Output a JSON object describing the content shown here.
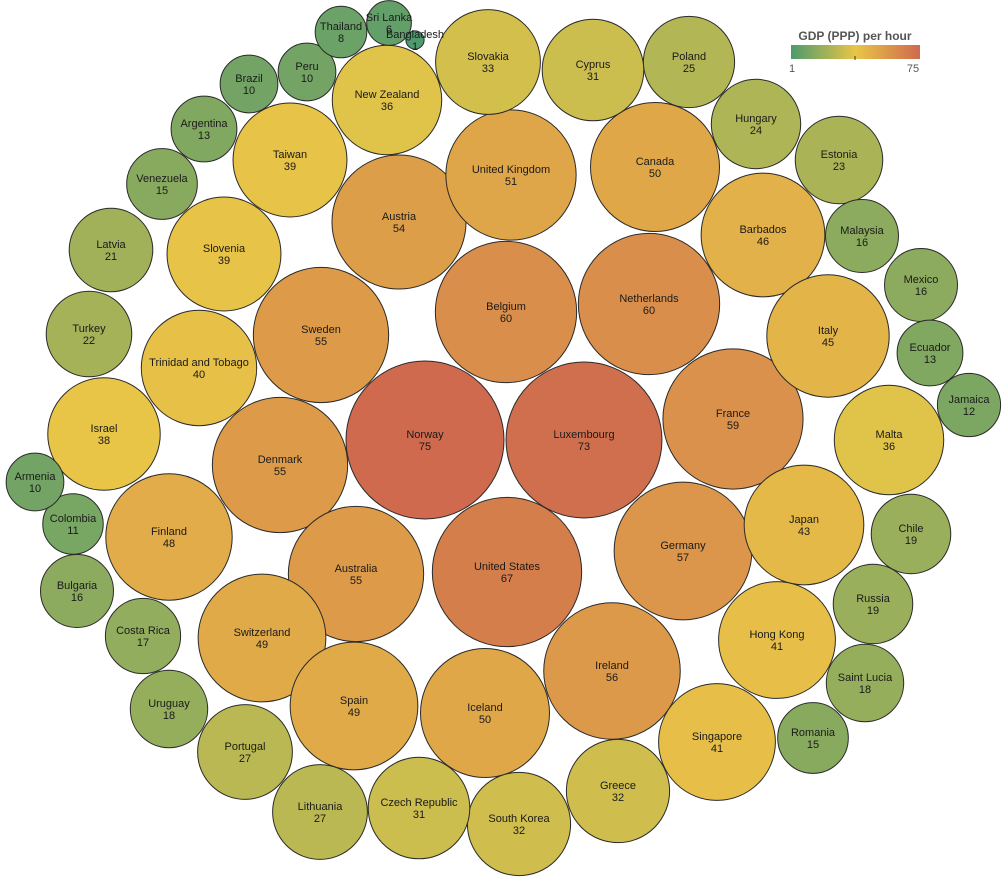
{
  "chart_data": {
    "type": "bubble",
    "title": "",
    "legend": {
      "title": "GDP (PPP) per hour",
      "min": 1,
      "max": 75,
      "placement": "top-right"
    },
    "color_scale": [
      "#4e9a6e",
      "#e8c547",
      "#cf6a4e"
    ],
    "series": [
      {
        "name": "Norway",
        "value": 75
      },
      {
        "name": "Luxembourg",
        "value": 73
      },
      {
        "name": "United States",
        "value": 67
      },
      {
        "name": "Belgium",
        "value": 60
      },
      {
        "name": "Netherlands",
        "value": 60
      },
      {
        "name": "France",
        "value": 59
      },
      {
        "name": "Germany",
        "value": 57
      },
      {
        "name": "Ireland",
        "value": 56
      },
      {
        "name": "Sweden",
        "value": 55
      },
      {
        "name": "Denmark",
        "value": 55
      },
      {
        "name": "Australia",
        "value": 55
      },
      {
        "name": "Austria",
        "value": 54
      },
      {
        "name": "United Kingdom",
        "value": 51
      },
      {
        "name": "Canada",
        "value": 50
      },
      {
        "name": "Iceland",
        "value": 50
      },
      {
        "name": "Switzerland",
        "value": 49
      },
      {
        "name": "Spain",
        "value": 49
      },
      {
        "name": "Finland",
        "value": 48
      },
      {
        "name": "Barbados",
        "value": 46
      },
      {
        "name": "Italy",
        "value": 45
      },
      {
        "name": "Japan",
        "value": 43
      },
      {
        "name": "Hong Kong",
        "value": 41
      },
      {
        "name": "Singapore",
        "value": 41
      },
      {
        "name": "Trinidad and Tobago",
        "value": 40
      },
      {
        "name": "Taiwan",
        "value": 39
      },
      {
        "name": "Slovenia",
        "value": 39
      },
      {
        "name": "Israel",
        "value": 38
      },
      {
        "name": "New Zealand",
        "value": 36
      },
      {
        "name": "Malta",
        "value": 36
      },
      {
        "name": "Slovakia",
        "value": 33
      },
      {
        "name": "South Korea",
        "value": 32
      },
      {
        "name": "Greece",
        "value": 32
      },
      {
        "name": "Cyprus",
        "value": 31
      },
      {
        "name": "Czech Republic",
        "value": 31
      },
      {
        "name": "Portugal",
        "value": 27
      },
      {
        "name": "Lithuania",
        "value": 27
      },
      {
        "name": "Poland",
        "value": 25
      },
      {
        "name": "Hungary",
        "value": 24
      },
      {
        "name": "Estonia",
        "value": 23
      },
      {
        "name": "Turkey",
        "value": 22
      },
      {
        "name": "Latvia",
        "value": 21
      },
      {
        "name": "Chile",
        "value": 19
      },
      {
        "name": "Russia",
        "value": 19
      },
      {
        "name": "Uruguay",
        "value": 18
      },
      {
        "name": "Saint Lucia",
        "value": 18
      },
      {
        "name": "Costa Rica",
        "value": 17
      },
      {
        "name": "Malaysia",
        "value": 16
      },
      {
        "name": "Mexico",
        "value": 16
      },
      {
        "name": "Bulgaria",
        "value": 16
      },
      {
        "name": "Venezuela",
        "value": 15
      },
      {
        "name": "Romania",
        "value": 15
      },
      {
        "name": "Argentina",
        "value": 13
      },
      {
        "name": "Ecuador",
        "value": 13
      },
      {
        "name": "Jamaica",
        "value": 12
      },
      {
        "name": "Colombia",
        "value": 11
      },
      {
        "name": "Brazil",
        "value": 10
      },
      {
        "name": "Peru",
        "value": 10
      },
      {
        "name": "Armenia",
        "value": 10
      },
      {
        "name": "Thailand",
        "value": 8
      },
      {
        "name": "Sri Lanka",
        "value": 6
      },
      {
        "name": "Bangladesh",
        "value": 1
      }
    ]
  }
}
